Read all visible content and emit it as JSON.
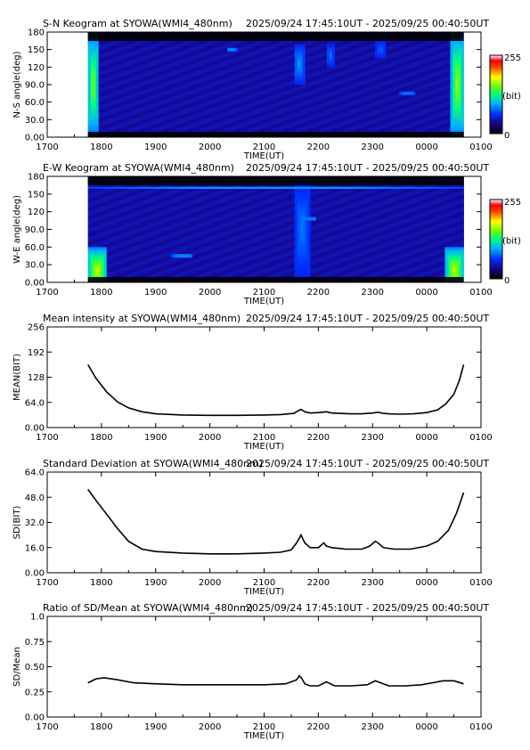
{
  "tick_labels": {
    "x": [
      "1700",
      "1800",
      "1900",
      "2000",
      "2100",
      "2200",
      "2300",
      "0000",
      "0100"
    ],
    "x_title": "TIME(UT)"
  },
  "colorbar": {
    "max_label": "255",
    "unit_label": "(bit)",
    "min_label": "0"
  },
  "panels": [
    {
      "key": "sn",
      "title": "S-N Keogram at SYOWA(WMI4_480nm)",
      "time_range": "2025/09/24 17:45:10UT - 2025/09/25 00:40:50UT",
      "ylabel": "N-S angle(deg)",
      "yticks": [
        "0.00",
        "30.0",
        "60.0",
        "90.0",
        "120",
        "150",
        "180"
      ]
    },
    {
      "key": "ew",
      "title": "E-W Keogram at SYOWA(WMI4_480nm)",
      "time_range": "2025/09/24 17:45:10UT - 2025/09/25 00:40:50UT",
      "ylabel": "W-E angle(deg)",
      "yticks": [
        "0.00",
        "30.0",
        "60.0",
        "90.0",
        "120",
        "150",
        "180"
      ]
    },
    {
      "key": "mean",
      "title": "Mean intensity at SYOWA(WMI4_480nm)",
      "time_range": "2025/09/24 17:45:10UT - 2025/09/25 00:40:50UT",
      "ylabel": "MEAN(BIT)",
      "yticks": [
        "0.00",
        "64.0",
        "128",
        "192",
        "256"
      ]
    },
    {
      "key": "sd",
      "title": "Standard Deviation at SYOWA(WMI4_480nm)",
      "time_range": "2025/09/24 17:45:10UT - 2025/09/25 00:40:50UT",
      "ylabel": "SD(BIT)",
      "yticks": [
        "0.00",
        "16.0",
        "32.0",
        "48.0",
        "64.0"
      ]
    },
    {
      "key": "ratio",
      "title": "Ratio of SD/Mean at SYOWA(WMI4_480nm)",
      "time_range": "2025/09/24 17:45:10UT - 2025/09/25 00:40:50UT",
      "ylabel": "SD/Mean",
      "yticks": [
        "0.00",
        "0.25",
        "0.50",
        "0.75",
        "1.0"
      ]
    }
  ],
  "chart_data": [
    {
      "type": "heatmap",
      "title": "S-N Keogram at SYOWA(WMI4_480nm)",
      "xlabel": "TIME(UT)",
      "ylabel": "N-S angle(deg)",
      "xlim": [
        17.0,
        25.0
      ],
      "ylim": [
        0,
        180
      ],
      "data_start": 17.75,
      "data_end": 24.68,
      "colorscale": {
        "min": 0,
        "max": 255,
        "unit": "(bit)"
      },
      "baseline_level": 40,
      "features": [
        {
          "x_start": 17.75,
          "x_end": 17.95,
          "y_center": 90,
          "y_halfwidth": 90,
          "level": 160,
          "note": "bright edge start"
        },
        {
          "x_start": 24.45,
          "x_end": 24.68,
          "y_center": 90,
          "y_halfwidth": 90,
          "level": 170,
          "note": "bright edge end"
        },
        {
          "x_start": 21.55,
          "x_end": 21.75,
          "y_center": 125,
          "y_halfwidth": 35,
          "level": 95
        },
        {
          "x_start": 22.15,
          "x_end": 22.3,
          "y_center": 140,
          "y_halfwidth": 20,
          "level": 85
        },
        {
          "x_start": 23.05,
          "x_end": 23.25,
          "y_center": 150,
          "y_halfwidth": 15,
          "level": 80
        },
        {
          "x_start": 20.3,
          "x_end": 20.5,
          "y_center": 150,
          "y_halfwidth": 3,
          "level": 110
        },
        {
          "x_start": 23.5,
          "x_end": 23.8,
          "y_center": 75,
          "y_halfwidth": 3,
          "level": 100
        }
      ]
    },
    {
      "type": "heatmap",
      "title": "E-W Keogram at SYOWA(WMI4_480nm)",
      "xlabel": "TIME(UT)",
      "ylabel": "W-E angle(deg)",
      "xlim": [
        17.0,
        25.0
      ],
      "ylim": [
        0,
        180
      ],
      "data_start": 17.75,
      "data_end": 24.68,
      "colorscale": {
        "min": 0,
        "max": 255,
        "unit": "(bit)"
      },
      "baseline_level": 40,
      "features": [
        {
          "x_start": 17.75,
          "x_end": 18.1,
          "y_center": 20,
          "y_halfwidth": 40,
          "level": 180,
          "note": "bright lower-left"
        },
        {
          "x_start": 24.35,
          "x_end": 24.68,
          "y_center": 20,
          "y_halfwidth": 40,
          "level": 180,
          "note": "bright lower-right"
        },
        {
          "x_start": 17.75,
          "x_end": 24.68,
          "y_center": 160,
          "y_halfwidth": 1.5,
          "level": 110,
          "note": "horizontal line"
        },
        {
          "x_start": 21.55,
          "x_end": 21.85,
          "y_center": 90,
          "y_halfwidth": 90,
          "level": 85
        },
        {
          "x_start": 21.7,
          "x_end": 21.95,
          "y_center": 108,
          "y_halfwidth": 2,
          "level": 130
        },
        {
          "x_start": 19.3,
          "x_end": 19.7,
          "y_center": 45,
          "y_halfwidth": 3,
          "level": 110
        }
      ]
    },
    {
      "type": "line",
      "title": "Mean intensity at SYOWA(WMI4_480nm)",
      "xlabel": "TIME(UT)",
      "ylabel": "MEAN(BIT)",
      "xlim": [
        17.0,
        25.0
      ],
      "ylim": [
        0,
        256
      ],
      "series": [
        {
          "x": [
            17.75,
            17.9,
            18.1,
            18.3,
            18.5,
            18.75,
            19.0,
            19.5,
            20.0,
            20.5,
            21.0,
            21.3,
            21.55,
            21.62,
            21.68,
            21.75,
            21.85,
            22.0,
            22.15,
            22.25,
            22.4,
            22.6,
            22.8,
            23.0,
            23.1,
            23.2,
            23.3,
            23.5,
            23.75,
            24.0,
            24.2,
            24.35,
            24.5,
            24.6,
            24.68
          ],
          "y": [
            160,
            125,
            90,
            65,
            50,
            40,
            35,
            32,
            31,
            31,
            32,
            33,
            36,
            42,
            46,
            40,
            37,
            38,
            40,
            37,
            36,
            35,
            35,
            37,
            39,
            36,
            35,
            34,
            35,
            38,
            45,
            60,
            85,
            120,
            160
          ]
        }
      ]
    },
    {
      "type": "line",
      "title": "Standard Deviation at SYOWA(WMI4_480nm)",
      "xlabel": "TIME(UT)",
      "ylabel": "SD(BIT)",
      "xlim": [
        17.0,
        25.0
      ],
      "ylim": [
        0,
        64
      ],
      "series": [
        {
          "x": [
            17.75,
            17.9,
            18.1,
            18.3,
            18.5,
            18.75,
            19.0,
            19.5,
            20.0,
            20.5,
            21.0,
            21.3,
            21.5,
            21.6,
            21.65,
            21.68,
            21.75,
            21.85,
            22.0,
            22.1,
            22.15,
            22.25,
            22.5,
            22.8,
            22.95,
            23.05,
            23.1,
            23.2,
            23.4,
            23.7,
            24.0,
            24.2,
            24.4,
            24.55,
            24.68
          ],
          "y": [
            53,
            46,
            37,
            28,
            20,
            15,
            13.5,
            12.5,
            12,
            12,
            12.5,
            13,
            14.5,
            19,
            22,
            24,
            19,
            16,
            16,
            19,
            17,
            16,
            15,
            15,
            17,
            20,
            19,
            16,
            15,
            15,
            17,
            20,
            27,
            38,
            51
          ]
        }
      ]
    },
    {
      "type": "line",
      "title": "Ratio of SD/Mean at SYOWA(WMI4_480nm)",
      "xlabel": "TIME(UT)",
      "ylabel": "SD/Mean",
      "xlim": [
        17.0,
        25.0
      ],
      "ylim": [
        0,
        1.0
      ],
      "series": [
        {
          "x": [
            17.75,
            17.9,
            18.05,
            18.3,
            18.6,
            19.0,
            19.5,
            20.0,
            20.5,
            21.0,
            21.4,
            21.6,
            21.65,
            21.7,
            21.75,
            21.85,
            22.0,
            22.15,
            22.3,
            22.6,
            22.9,
            23.05,
            23.15,
            23.3,
            23.6,
            23.9,
            24.1,
            24.3,
            24.5,
            24.68
          ],
          "y": [
            0.34,
            0.38,
            0.39,
            0.37,
            0.34,
            0.33,
            0.32,
            0.32,
            0.32,
            0.32,
            0.33,
            0.37,
            0.41,
            0.38,
            0.33,
            0.31,
            0.31,
            0.35,
            0.31,
            0.31,
            0.32,
            0.36,
            0.34,
            0.31,
            0.31,
            0.32,
            0.34,
            0.36,
            0.36,
            0.33
          ]
        }
      ]
    }
  ]
}
